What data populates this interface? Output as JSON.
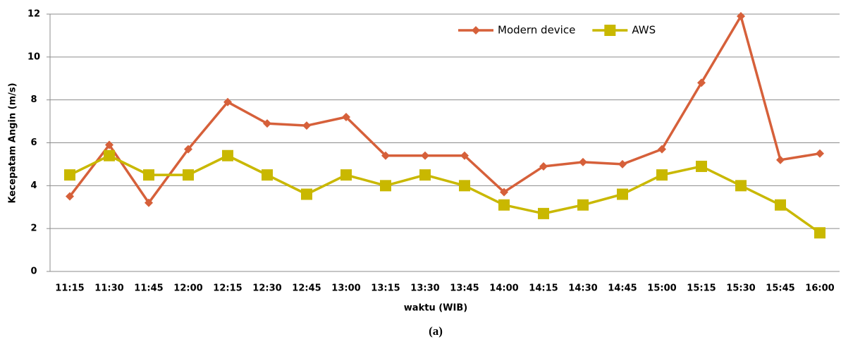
{
  "chart_data": {
    "type": "line",
    "caption": "(a)",
    "x_label": "waktu (WIB)",
    "y_label": "Kecepatam Angin (m/s)",
    "categories": [
      "11:15",
      "11:30",
      "11:45",
      "12:00",
      "12:15",
      "12:30",
      "12:45",
      "13:00",
      "13:15",
      "13:30",
      "13:45",
      "14:00",
      "14:15",
      "14:30",
      "14:45",
      "15:00",
      "15:15",
      "15:30",
      "15:45",
      "16:00"
    ],
    "series": [
      {
        "name": "Modern device",
        "color": "#d6603a",
        "marker": "diamond",
        "values": [
          3.5,
          5.9,
          3.2,
          5.7,
          7.9,
          6.9,
          6.8,
          7.2,
          5.4,
          5.4,
          5.4,
          3.7,
          4.9,
          5.1,
          5.0,
          5.7,
          8.8,
          11.9,
          5.2,
          5.5
        ]
      },
      {
        "name": "AWS",
        "color": "#c9b800",
        "marker": "square",
        "values": [
          4.5,
          5.4,
          4.5,
          4.5,
          5.4,
          4.5,
          3.6,
          4.5,
          4.0,
          4.5,
          4.0,
          3.1,
          2.7,
          3.1,
          3.6,
          4.5,
          4.9,
          4.0,
          3.1,
          1.8
        ]
      }
    ],
    "ylim": [
      0,
      12
    ],
    "yticks": [
      0,
      2,
      4,
      6,
      8,
      10,
      12
    ],
    "grid": true,
    "legend": "upper right"
  }
}
